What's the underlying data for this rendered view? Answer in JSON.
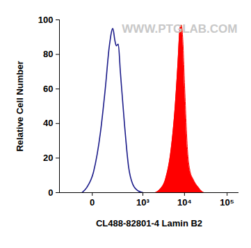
{
  "chart_data": {
    "type": "histogram",
    "x_label": "CL488-82801-4 Lamin B2",
    "y_label": "Relative Cell Number",
    "annotations": [
      "WWW.PTGLAB.COM"
    ],
    "log": "x",
    "xlim": [
      -340,
      188000
    ],
    "ylim": [
      0,
      100
    ],
    "xticks": [
      0,
      {
        "value": 1000,
        "label": "10³"
      },
      {
        "value": 10000,
        "label": "10⁴"
      },
      {
        "value": 100000,
        "label": "10⁵"
      }
    ],
    "yticks": [
      0,
      20,
      40,
      60,
      80,
      100
    ],
    "series": [
      {
        "type": "line",
        "color": "#1c1c8a",
        "x": [
          -52,
          -24,
          5,
          39,
          71,
          106,
          142,
          167,
          185,
          214,
          248,
          326,
          425,
          547,
          759,
          1005
        ],
        "values": [
          0,
          3,
          12,
          35,
          60,
          85,
          95,
          88,
          85,
          86,
          70,
          40,
          15,
          5,
          1,
          0
        ]
      },
      {
        "type": "area",
        "color": "#ff0000",
        "x": [
          2016,
          2635,
          3556,
          4810,
          6010,
          6985,
          7806,
          8410,
          9065,
          10133,
          11754,
          13636,
          15820,
          18350,
          21280,
          24650,
          28600
        ],
        "values": [
          0,
          2,
          8,
          25,
          50,
          75,
          95,
          97,
          90,
          60,
          25,
          12,
          8,
          5,
          3,
          1,
          0
        ]
      }
    ]
  }
}
